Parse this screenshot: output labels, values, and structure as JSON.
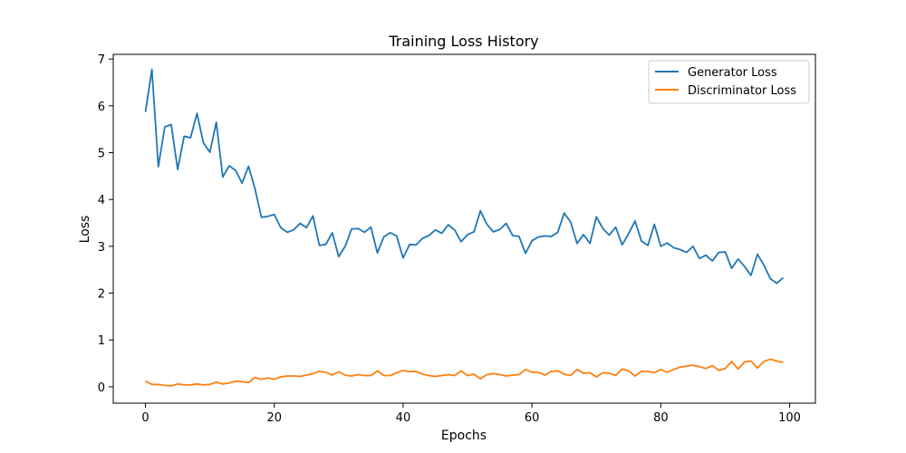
{
  "chart_data": {
    "type": "line",
    "title": "Training Loss History",
    "xlabel": "Epochs",
    "ylabel": "Loss",
    "xlim": [
      -5,
      104
    ],
    "ylim": [
      -0.35,
      7.1
    ],
    "xticks": [
      0,
      20,
      40,
      60,
      80,
      100
    ],
    "yticks": [
      0,
      1,
      2,
      3,
      4,
      5,
      6,
      7
    ],
    "grid": false,
    "legend_position": "top-right",
    "series": [
      {
        "name": "Generator Loss",
        "color": "#1f77b4",
        "values": [
          5.87,
          6.78,
          4.7,
          5.55,
          5.6,
          4.64,
          5.35,
          5.32,
          5.84,
          5.21,
          5.01,
          5.65,
          4.48,
          4.72,
          4.62,
          4.35,
          4.71,
          4.23,
          3.62,
          3.64,
          3.68,
          3.4,
          3.3,
          3.35,
          3.49,
          3.4,
          3.65,
          3.02,
          3.04,
          3.29,
          2.78,
          3.0,
          3.37,
          3.38,
          3.3,
          3.41,
          2.86,
          3.2,
          3.29,
          3.22,
          2.75,
          3.04,
          3.03,
          3.17,
          3.23,
          3.35,
          3.28,
          3.46,
          3.35,
          3.1,
          3.25,
          3.31,
          3.76,
          3.47,
          3.31,
          3.36,
          3.49,
          3.23,
          3.21,
          2.85,
          3.12,
          3.2,
          3.22,
          3.21,
          3.3,
          3.71,
          3.52,
          3.06,
          3.25,
          3.06,
          3.63,
          3.38,
          3.24,
          3.41,
          3.03,
          3.27,
          3.54,
          3.11,
          3.02,
          3.47,
          3.0,
          3.07,
          2.97,
          2.93,
          2.87,
          3.0,
          2.74,
          2.81,
          2.69,
          2.87,
          2.88,
          2.53,
          2.73,
          2.57,
          2.38,
          2.83,
          2.6,
          2.31,
          2.21,
          2.33
        ]
      },
      {
        "name": "Discriminator Loss",
        "color": "#ff7f0e",
        "values": [
          0.12,
          0.05,
          0.05,
          0.03,
          0.02,
          0.06,
          0.04,
          0.04,
          0.06,
          0.04,
          0.05,
          0.1,
          0.06,
          0.08,
          0.12,
          0.11,
          0.09,
          0.2,
          0.16,
          0.19,
          0.16,
          0.21,
          0.23,
          0.23,
          0.22,
          0.25,
          0.28,
          0.33,
          0.31,
          0.25,
          0.32,
          0.25,
          0.23,
          0.26,
          0.24,
          0.24,
          0.34,
          0.24,
          0.24,
          0.3,
          0.35,
          0.32,
          0.33,
          0.27,
          0.24,
          0.22,
          0.24,
          0.26,
          0.24,
          0.34,
          0.24,
          0.27,
          0.17,
          0.26,
          0.28,
          0.26,
          0.23,
          0.25,
          0.26,
          0.37,
          0.31,
          0.31,
          0.25,
          0.33,
          0.34,
          0.27,
          0.24,
          0.37,
          0.29,
          0.3,
          0.21,
          0.3,
          0.29,
          0.24,
          0.38,
          0.34,
          0.23,
          0.33,
          0.33,
          0.3,
          0.37,
          0.31,
          0.37,
          0.42,
          0.44,
          0.46,
          0.43,
          0.39,
          0.45,
          0.35,
          0.39,
          0.54,
          0.38,
          0.53,
          0.55,
          0.4,
          0.54,
          0.59,
          0.55,
          0.52
        ]
      }
    ]
  }
}
